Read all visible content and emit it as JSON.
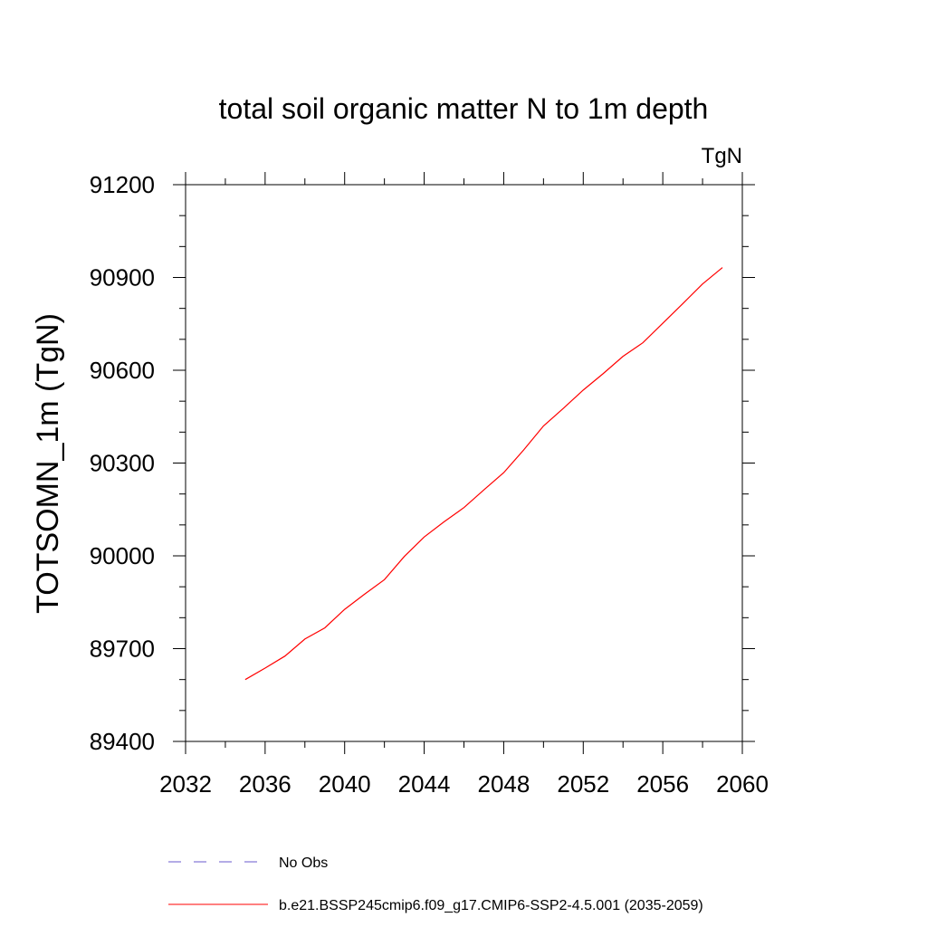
{
  "chart_data": {
    "type": "line",
    "title": "total soil organic matter N to 1m depth",
    "units_label": "TgN",
    "xlabel": "",
    "ylabel": "TOTSOMN_1m  (TgN)",
    "xlim": [
      2032,
      2060
    ],
    "ylim": [
      89400,
      91200
    ],
    "xticks": [
      2032,
      2036,
      2040,
      2044,
      2048,
      2052,
      2056,
      2060
    ],
    "yticks": [
      89400,
      89700,
      90000,
      90300,
      90600,
      90900,
      91200
    ],
    "x_minor_step": 2,
    "y_minor_step": 100,
    "grid": false,
    "legend_position": "bottom",
    "series": [
      {
        "name": "No Obs",
        "color": "#6a5acd",
        "dash": "dashed",
        "x": [],
        "values": []
      },
      {
        "name": "b.e21.BSSP245cmip6.f09_g17.CMIP6-SSP2-4.5.001 (2035-2059)",
        "color": "#ff0000",
        "dash": "solid",
        "x": [
          2035,
          2036,
          2037,
          2038,
          2039,
          2040,
          2041,
          2042,
          2043,
          2044,
          2045,
          2046,
          2047,
          2048,
          2049,
          2050,
          2051,
          2052,
          2053,
          2054,
          2055,
          2056,
          2057,
          2058,
          2059
        ],
        "values": [
          89600,
          89637,
          89676,
          89731,
          89767,
          89827,
          89876,
          89923,
          89998,
          90061,
          90110,
          90156,
          90213,
          90269,
          90342,
          90420,
          90477,
          90536,
          90589,
          90645,
          90689,
          90752,
          90815,
          90879,
          90932
        ]
      }
    ]
  }
}
